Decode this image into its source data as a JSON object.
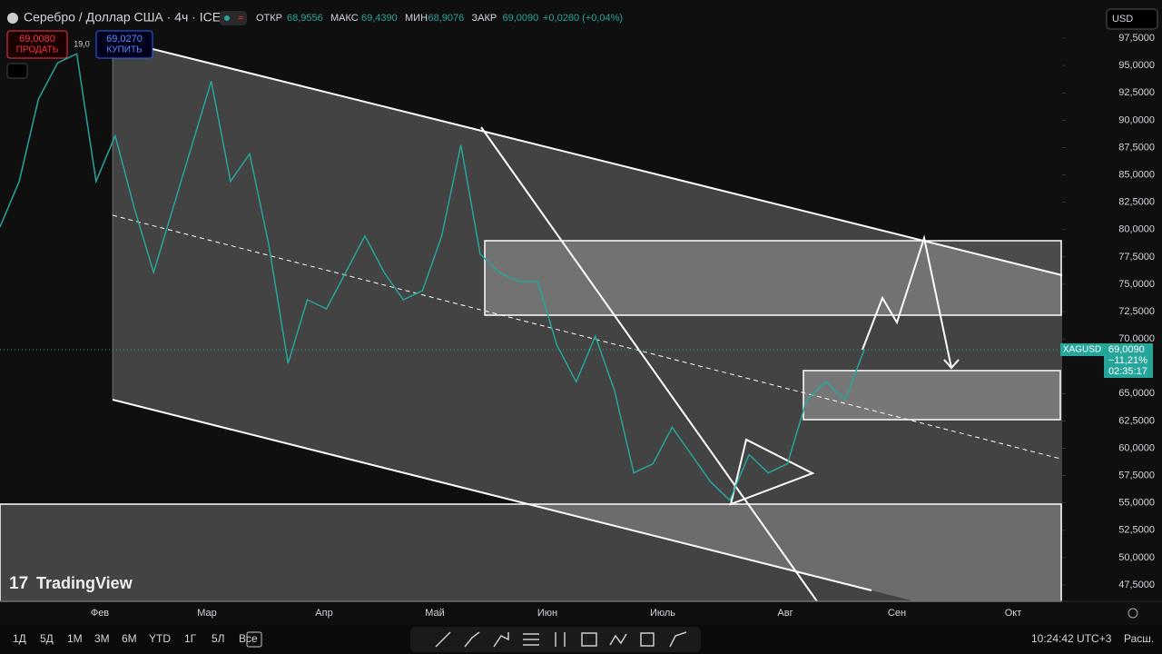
{
  "header": {
    "title": "Серебро / Доллар США · 4ч · ICE",
    "ohlc": [
      {
        "label": "ОТКР",
        "value": "68,9556"
      },
      {
        "label": "МАКС",
        "value": "69,4390"
      },
      {
        "label": "МИН",
        "value": "68,9076"
      },
      {
        "label": "ЗАКР",
        "value": "69,0090"
      }
    ],
    "change": "+0,0260 (+0,04%)",
    "currency": "USD"
  },
  "order": {
    "sell_price": "69,0080",
    "sell": "ПРОДАТЬ",
    "spread": "19,0",
    "buy_price": "69,0270",
    "buy": "КУПИТЬ"
  },
  "watermark": "TradingView",
  "price_tag": {
    "symbol": "XAGUSD",
    "price": "69,0090",
    "change": "−11,21%",
    "countdown": "02:35:17"
  },
  "chart_data": {
    "type": "line",
    "ylim": [
      46000,
      101000
    ],
    "yticks": [
      {
        "value": 97500,
        "label": "97,5000"
      },
      {
        "value": 95000,
        "label": "95,0000"
      },
      {
        "value": 92500,
        "label": "92,5000"
      },
      {
        "value": 90000,
        "label": "90,0000"
      },
      {
        "value": 87500,
        "label": "87,5000"
      },
      {
        "value": 85000,
        "label": "85,0000"
      },
      {
        "value": 82500,
        "label": "82,5000"
      },
      {
        "value": 80000,
        "label": "80,0000"
      },
      {
        "value": 77500,
        "label": "77,5000"
      },
      {
        "value": 75000,
        "label": "75,0000"
      },
      {
        "value": 72500,
        "label": "72,5000"
      },
      {
        "value": 70000,
        "label": "70,0000"
      },
      {
        "value": 65000,
        "label": "65,0000"
      },
      {
        "value": 62500,
        "label": "62,5000"
      },
      {
        "value": 60000,
        "label": "60,0000"
      },
      {
        "value": 57500,
        "label": "57,5000"
      },
      {
        "value": 55000,
        "label": "55,0000"
      },
      {
        "value": 52500,
        "label": "52,5000"
      },
      {
        "value": 50000,
        "label": "50,0000"
      },
      {
        "value": 47500,
        "label": "47,5000"
      }
    ],
    "month_labels": [
      "Фев",
      "Мар",
      "Апр",
      "Май",
      "Июн",
      "Июль",
      "Авг",
      "Сен",
      "Окт"
    ],
    "categories": [
      null,
      null,
      null,
      null,
      null,
      null,
      null,
      null,
      null,
      null,
      null,
      null,
      null,
      null,
      null,
      null,
      null,
      null,
      null,
      null,
      null,
      null,
      null,
      null,
      null,
      null,
      null,
      null,
      null,
      null,
      null,
      null,
      null,
      null,
      null,
      null,
      null,
      null,
      null,
      null,
      null,
      null,
      null,
      null,
      null,
      null
    ],
    "series": [
      {
        "color": "#26a69a",
        "values": [
          80250,
          84420,
          91920,
          95250,
          96080,
          84420,
          88580,
          81920,
          76080,
          81920,
          87750,
          93580,
          84420,
          86920,
          78580,
          67750,
          73580,
          72750,
          76080,
          79420,
          76080,
          73580,
          74420,
          79420,
          87750,
          77750,
          76080,
          75250,
          75250,
          69420,
          66080,
          70250,
          65250,
          57750,
          58580,
          61920,
          59420,
          56920,
          55250,
          59420,
          57750,
          58580,
          64420,
          66080,
          64420,
          69009
        ]
      }
    ]
  },
  "toolbar": {
    "ranges": [
      "1Д",
      "5Д",
      "1М",
      "3М",
      "6М",
      "YTD",
      "1Г",
      "5Л",
      "Все"
    ],
    "time": "10:24:42 UTC+3",
    "expand": "Расш."
  }
}
